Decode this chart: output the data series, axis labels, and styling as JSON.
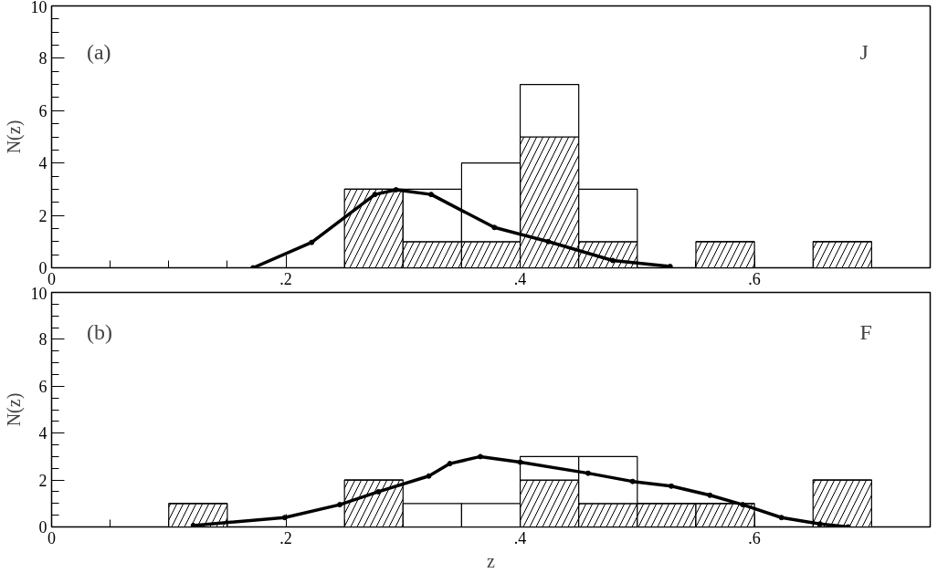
{
  "chart_data": [
    {
      "type": "bar",
      "stacked": true,
      "ylabel": "N(z)",
      "annotations": [
        "(a)",
        "J"
      ],
      "x": [
        0.275,
        0.325,
        0.375,
        0.425,
        0.475,
        0.525,
        0.575,
        0.625,
        0.675
      ],
      "series": [
        {
          "color": "#000000",
          "values": [
            3,
            1,
            1,
            5,
            1,
            0,
            1,
            0,
            1
          ]
        },
        {
          "color": "#000000",
          "values": [
            0,
            2,
            3,
            2,
            2,
            0,
            0,
            0,
            0
          ]
        },
        {
          "type": "line",
          "color": "#000000",
          "marker": "circle",
          "line_style": "solid",
          "x": [
            0.172,
            0.222,
            0.276,
            0.294,
            0.324,
            0.378,
            0.424,
            0.479,
            0.528
          ],
          "values": [
            0,
            0.97,
            2.8,
            2.98,
            2.8,
            1.54,
            1.0,
            0.28,
            0.05
          ]
        }
      ],
      "ylim": [
        0,
        10
      ],
      "yticks": [
        0,
        {
          "value": 0.5,
          "label": null
        },
        {
          "value": 1,
          "label": null
        },
        {
          "value": 1.5,
          "label": null
        },
        2,
        {
          "value": 2.5,
          "label": null
        },
        {
          "value": 3,
          "label": null
        },
        {
          "value": 3.5,
          "label": null
        },
        4,
        {
          "value": 4.5,
          "label": null
        },
        {
          "value": 5,
          "label": null
        },
        {
          "value": 5.5,
          "label": null
        },
        6,
        {
          "value": 6.5,
          "label": null
        },
        {
          "value": 7,
          "label": null
        },
        {
          "value": 7.5,
          "label": null
        },
        8,
        {
          "value": 8.5,
          "label": null
        },
        {
          "value": 9,
          "label": null
        },
        {
          "value": 9.5,
          "label": null
        },
        10
      ],
      "xlim": [
        0,
        0.75
      ],
      "xticks": [
        {
          "value": 0,
          "label": "0"
        },
        {
          "value": 0.05,
          "label": null
        },
        {
          "value": 0.1,
          "label": null
        },
        {
          "value": 0.15,
          "label": null
        },
        {
          "value": 0.2,
          "label": ".2"
        },
        {
          "value": 0.25,
          "label": null
        },
        {
          "value": 0.3,
          "label": null
        },
        {
          "value": 0.35,
          "label": null
        },
        {
          "value": 0.4,
          "label": ".4"
        },
        {
          "value": 0.45,
          "label": null
        },
        {
          "value": 0.5,
          "label": null
        },
        {
          "value": 0.55,
          "label": null
        },
        {
          "value": 0.6,
          "label": ".6"
        },
        {
          "value": 0.65,
          "label": null
        },
        {
          "value": 0.7,
          "label": null
        }
      ],
      "grid": false
    },
    {
      "type": "bar",
      "stacked": true,
      "xlabel": "z",
      "ylabel": "N(z)",
      "annotations": [
        "(b)",
        "F"
      ],
      "x": [
        0.125,
        0.175,
        0.225,
        0.275,
        0.325,
        0.375,
        0.425,
        0.475,
        0.525,
        0.575,
        0.625,
        0.675
      ],
      "series": [
        {
          "color": "#000000",
          "values": [
            1,
            0,
            0,
            2,
            0,
            0,
            2,
            1,
            1,
            1,
            0,
            2
          ]
        },
        {
          "color": "#000000",
          "values": [
            0,
            0,
            0,
            0,
            1,
            1,
            1,
            2,
            0,
            0,
            0,
            0
          ]
        },
        {
          "type": "line",
          "color": "#000000",
          "marker": "circle",
          "line_style": "solid",
          "x": [
            0.121,
            0.199,
            0.246,
            0.279,
            0.322,
            0.34,
            0.366,
            0.4,
            0.458,
            0.496,
            0.529,
            0.562,
            0.59,
            0.623,
            0.656,
            0.68
          ],
          "values": [
            0.06,
            0.4,
            0.95,
            1.5,
            2.17,
            2.7,
            3.0,
            2.76,
            2.29,
            1.94,
            1.74,
            1.35,
            0.95,
            0.4,
            0.13,
            0
          ]
        }
      ],
      "ylim": [
        0,
        10
      ],
      "yticks": [
        0,
        {
          "value": 0.5,
          "label": null
        },
        {
          "value": 1,
          "label": null
        },
        {
          "value": 1.5,
          "label": null
        },
        2,
        {
          "value": 2.5,
          "label": null
        },
        {
          "value": 3,
          "label": null
        },
        {
          "value": 3.5,
          "label": null
        },
        4,
        {
          "value": 4.5,
          "label": null
        },
        {
          "value": 5,
          "label": null
        },
        {
          "value": 5.5,
          "label": null
        },
        6,
        {
          "value": 6.5,
          "label": null
        },
        {
          "value": 7,
          "label": null
        },
        {
          "value": 7.5,
          "label": null
        },
        8,
        {
          "value": 8.5,
          "label": null
        },
        {
          "value": 9,
          "label": null
        },
        {
          "value": 9.5,
          "label": null
        },
        10
      ],
      "xlim": [
        0,
        0.75
      ],
      "xticks": [
        {
          "value": 0,
          "label": "0"
        },
        {
          "value": 0.05,
          "label": null
        },
        {
          "value": 0.1,
          "label": null
        },
        {
          "value": 0.15,
          "label": null
        },
        {
          "value": 0.2,
          "label": ".2"
        },
        {
          "value": 0.25,
          "label": null
        },
        {
          "value": 0.3,
          "label": null
        },
        {
          "value": 0.35,
          "label": null
        },
        {
          "value": 0.4,
          "label": ".4"
        },
        {
          "value": 0.45,
          "label": null
        },
        {
          "value": 0.5,
          "label": null
        },
        {
          "value": 0.55,
          "label": null
        },
        {
          "value": 0.6,
          "label": ".6"
        },
        {
          "value": 0.65,
          "label": null
        },
        {
          "value": 0.7,
          "label": null
        }
      ],
      "grid": false
    }
  ]
}
